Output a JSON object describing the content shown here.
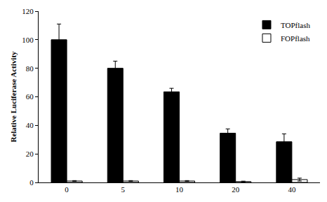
{
  "chart_data": {
    "type": "bar",
    "y_label": "Relative Luciferase Activity",
    "categories": [
      "0",
      "5",
      "10",
      "20",
      "40"
    ],
    "series": [
      {
        "name": "TOPflash",
        "color": "#000000",
        "values": [
          100,
          80,
          63.5,
          34.5,
          28.5
        ],
        "errors": [
          11,
          5,
          2.5,
          3,
          5.5
        ]
      },
      {
        "name": "FOPflash",
        "color": "#ffffff",
        "values": [
          1,
          1,
          1,
          0.6,
          2
        ],
        "errors": [
          0.3,
          0.3,
          0.3,
          0.3,
          1
        ]
      }
    ],
    "ylim": [
      0,
      120
    ],
    "yticks": [
      0,
      20,
      40,
      60,
      80,
      100,
      120
    ],
    "grid": false,
    "legend": "upper right"
  }
}
